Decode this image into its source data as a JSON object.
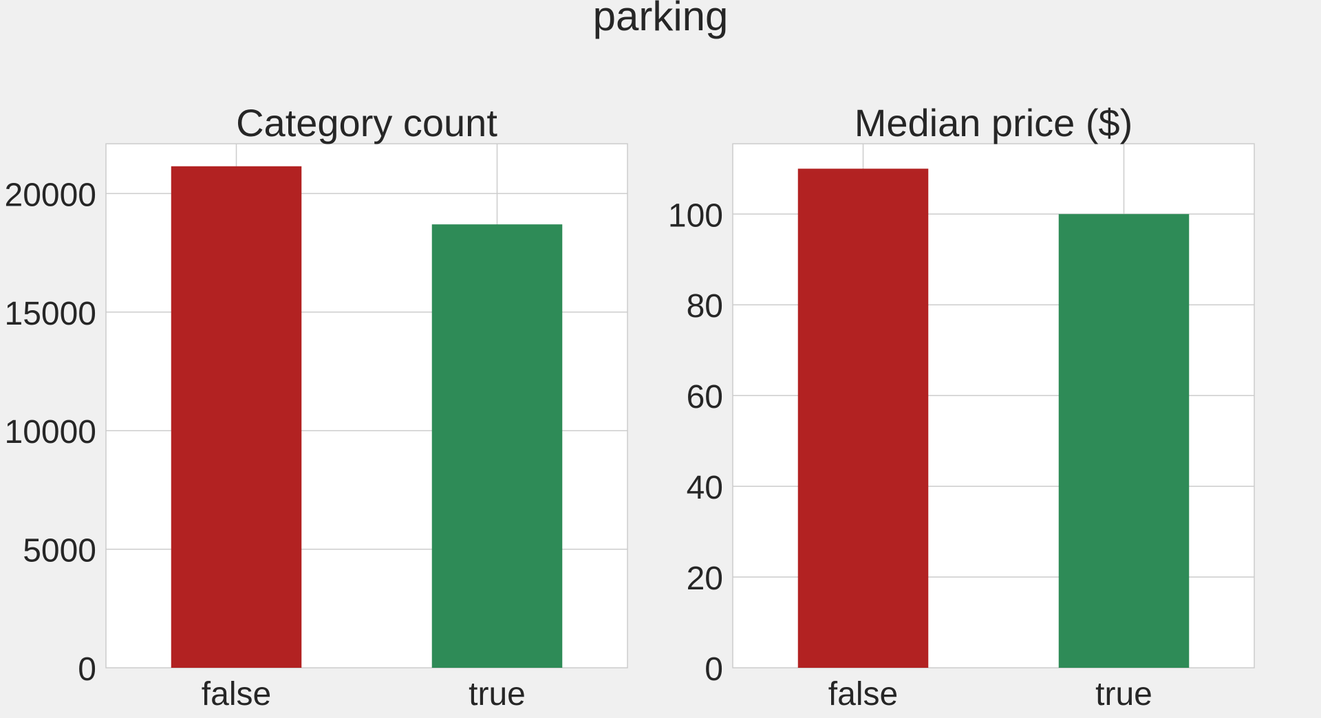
{
  "figure": {
    "title": "parking",
    "background": "#f0f0f0"
  },
  "chart_data": [
    {
      "type": "bar",
      "title": "Category count",
      "xlabel": "",
      "ylabel": "",
      "categories": [
        "false",
        "true"
      ],
      "values": [
        21150,
        18700
      ],
      "colors": [
        "#b22222",
        "#2e8b57"
      ],
      "ylim": [
        0,
        22100
      ],
      "yticks": [
        0,
        5000,
        10000,
        15000,
        20000
      ],
      "ytick_labels": [
        "0",
        "5000",
        "10000",
        "15000",
        "20000"
      ],
      "grid": true,
      "legend": "none"
    },
    {
      "type": "bar",
      "title": "Median price ($)",
      "xlabel": "",
      "ylabel": "",
      "categories": [
        "false",
        "true"
      ],
      "values": [
        110,
        100
      ],
      "colors": [
        "#b22222",
        "#2e8b57"
      ],
      "ylim": [
        0,
        115.5
      ],
      "yticks": [
        0,
        20,
        40,
        60,
        80,
        100
      ],
      "ytick_labels": [
        "0",
        "20",
        "40",
        "60",
        "80",
        "100"
      ],
      "grid": true,
      "legend": "none"
    }
  ]
}
